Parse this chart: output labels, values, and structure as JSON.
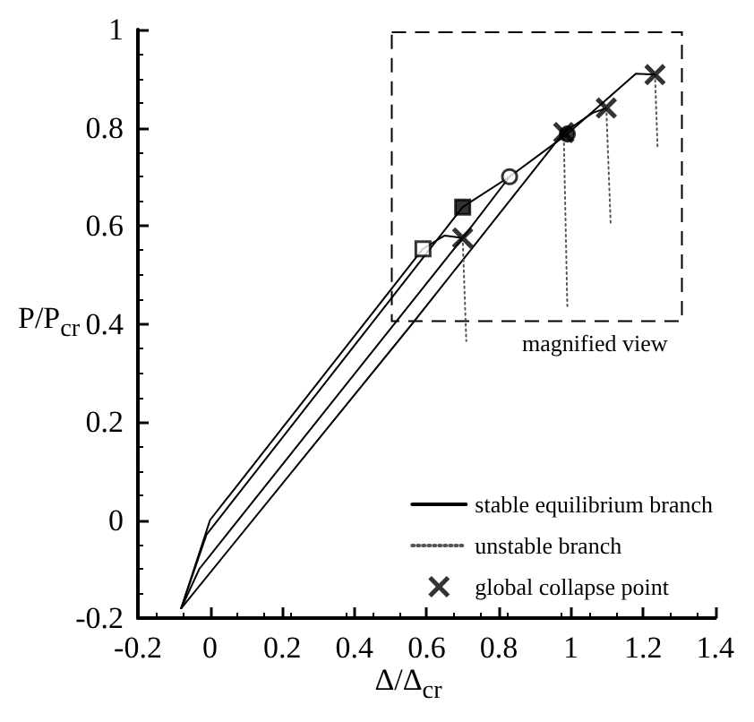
{
  "chart_data": {
    "type": "line",
    "xlabel": "Δ/Δ$_{cr}$",
    "ylabel": "P/P$_{cr}$",
    "xlim": [
      -0.2,
      1.4
    ],
    "ylim": [
      -0.2,
      1
    ],
    "xticks": [
      -0.2,
      0,
      0.2,
      0.4,
      0.6,
      0.8,
      1,
      1.2,
      1.4
    ],
    "yticks": [
      -0.2,
      0,
      0.2,
      0.4,
      0.6,
      0.8,
      1
    ],
    "grid": false,
    "legend": "bottom right",
    "annotations": [
      "magnified view"
    ],
    "series": [
      {
        "name": "stable equilibrium branch",
        "color": "#000000",
        "line_style": "solid",
        "marker": "none",
        "x": [
          -0.08,
          0,
          0.59,
          0.65,
          0.7
        ],
        "values": [
          -0.18,
          0,
          0.553,
          0.58,
          0.575
        ]
      },
      {
        "color": "#000000",
        "line_style": "solid",
        "marker": "none",
        "x": [
          -0.08,
          -0.01,
          0.7,
          0.83,
          0.99,
          1.18,
          1.233
        ],
        "values": [
          -0.18,
          -0.03,
          0.638,
          0.7,
          0.787,
          0.91,
          0.908
        ]
      },
      {
        "color": "#000000",
        "line_style": "solid",
        "marker": "none",
        "x": [
          -0.08,
          -0.03,
          0.7,
          0.83
        ],
        "values": [
          -0.18,
          -0.1,
          0.575,
          0.7
        ]
      },
      {
        "color": "#000000",
        "line_style": "solid",
        "marker": "none",
        "x": [
          -0.08,
          0.56,
          0.98,
          1.06,
          1.098
        ],
        "values": [
          -0.18,
          0.4,
          0.79,
          0.83,
          0.84
        ]
      },
      {
        "name": "unstable branch",
        "color": "#555555",
        "line_style": "dotted",
        "marker": "none",
        "x": [
          0.7,
          0.71
        ],
        "values": [
          0.575,
          0.365
        ]
      },
      {
        "color": "#555555",
        "line_style": "dotted",
        "marker": "none",
        "x": [
          0.98,
          0.99
        ],
        "values": [
          0.79,
          0.436
        ]
      },
      {
        "color": "#555555",
        "line_style": "dotted",
        "marker": "none",
        "x": [
          1.098,
          1.11
        ],
        "values": [
          0.84,
          0.606
        ]
      },
      {
        "color": "#555555",
        "line_style": "dotted",
        "marker": "none",
        "x": [
          1.233,
          1.24
        ],
        "values": [
          0.908,
          0.759
        ]
      },
      {
        "name": "global collapse point",
        "type": "scatter",
        "color": "#000000",
        "marker": "cross",
        "x": [
          0.7,
          0.98,
          1.098,
          1.233
        ],
        "values": [
          0.575,
          0.79,
          0.84,
          0.908
        ]
      },
      {
        "type": "scatter",
        "color": "#ffffff",
        "marker": "square",
        "x": [
          0.59
        ],
        "values": [
          0.553
        ]
      },
      {
        "type": "scatter",
        "color": "#000000",
        "marker": "square",
        "x": [
          0.7
        ],
        "values": [
          0.638
        ]
      },
      {
        "type": "scatter",
        "color": "#ffffff",
        "marker": "circle",
        "x": [
          0.83
        ],
        "values": [
          0.7
        ]
      },
      {
        "type": "scatter",
        "color": "#000000",
        "marker": "circle",
        "x": [
          0.99
        ],
        "values": [
          0.787
        ]
      }
    ]
  }
}
